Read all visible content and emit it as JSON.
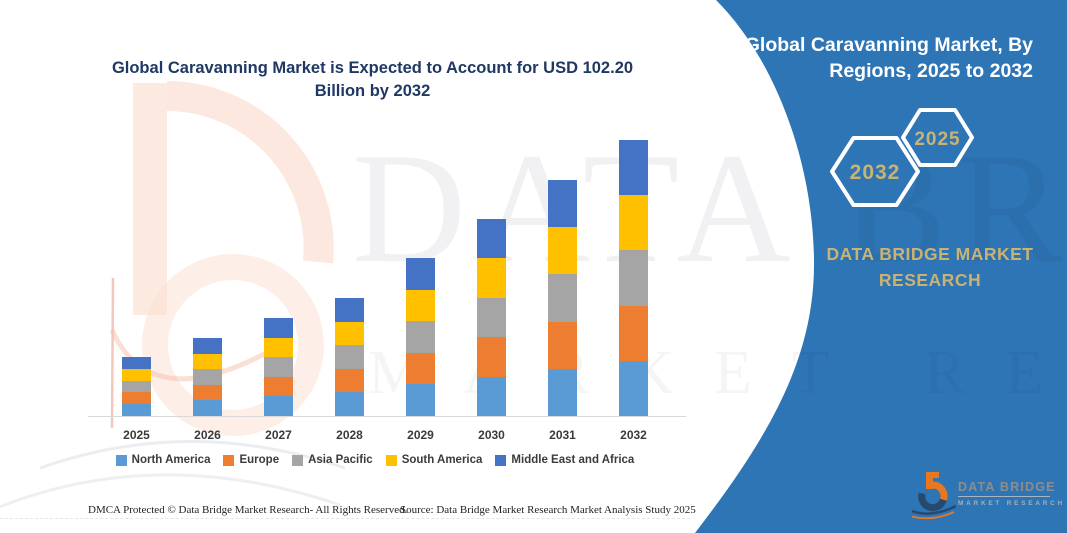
{
  "title": {
    "line1": "Global Caravanning Market is Expected to Account for USD 102.20",
    "line2": "Billion by 2032"
  },
  "sidebar": {
    "title_line1": "Global Caravanning Market, By",
    "title_line2": "Regions, 2025 to 2032",
    "badge_back_year": "2032",
    "badge_front_year": "2025",
    "brand_line1": "DATA BRIDGE MARKET",
    "brand_line2": "RESEARCH",
    "bg_color": "#2E75B6",
    "gold_color": "#C9B272",
    "logo_title": "DATA BRIDGE",
    "logo_subtitle": "MARKET RESEARCH"
  },
  "watermark": {
    "line1": "DATA BRIDGE",
    "line2": "MARKET RESEARCH"
  },
  "footer": {
    "left": "DMCA Protected © Data Bridge Market Research-  All Rights Reserved.",
    "right": "Source: Data Bridge Market Research  Market Analysis Study 2025"
  },
  "chart_data": {
    "type": "bar",
    "stacked": true,
    "title": "Global Caravanning Market is Expected to Account for USD 102.20 Billion by 2032",
    "unit": "USD Billion",
    "categories": [
      "2025",
      "2026",
      "2027",
      "2028",
      "2029",
      "2030",
      "2031",
      "2032"
    ],
    "series": [
      {
        "name": "North America",
        "color": "#5B9BD5",
        "values": [
          4.37,
          5.78,
          7.26,
          8.74,
          11.7,
          14.59,
          17.48,
          20.44
        ]
      },
      {
        "name": "Europe",
        "color": "#ED7D31",
        "values": [
          4.37,
          5.78,
          7.26,
          8.74,
          11.7,
          14.59,
          17.48,
          20.44
        ]
      },
      {
        "name": "Asia Pacific",
        "color": "#A5A5A5",
        "values": [
          4.37,
          5.78,
          7.26,
          8.74,
          11.7,
          14.59,
          17.48,
          20.44
        ]
      },
      {
        "name": "South America",
        "color": "#FFC000",
        "values": [
          4.37,
          5.78,
          7.26,
          8.74,
          11.7,
          14.59,
          17.48,
          20.44
        ]
      },
      {
        "name": "Middle East and Africa",
        "color": "#4472C4",
        "values": [
          4.37,
          5.78,
          7.26,
          8.74,
          11.7,
          14.59,
          17.48,
          20.44
        ]
      }
    ],
    "totals": [
      21.85,
      28.88,
      36.29,
      43.69,
      58.51,
      72.95,
      87.39,
      102.2
    ],
    "x_axis_visible": true,
    "y_axis_visible": false,
    "grid": false,
    "legend_position": "bottom"
  }
}
